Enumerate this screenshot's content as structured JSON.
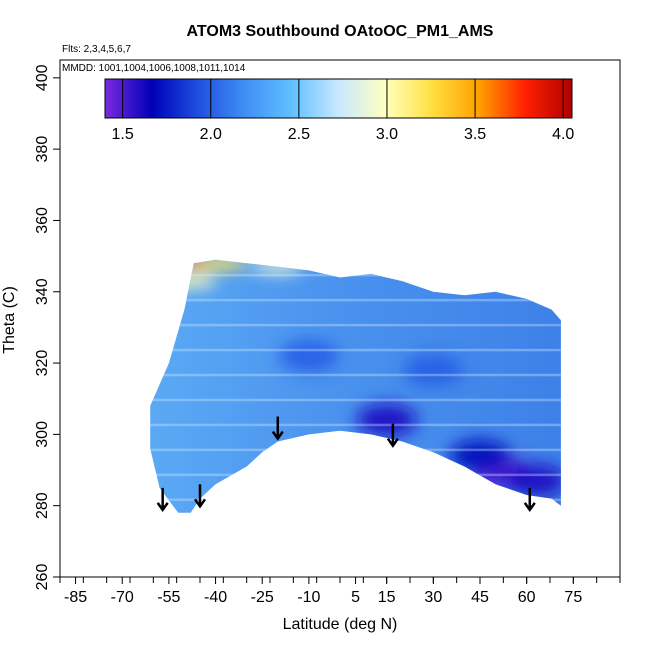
{
  "chart_data": {
    "type": "heatmap",
    "title": "ATOM3 Southbound OAtoOC_PM1_AMS",
    "subtitle_flights": "Flts: 2,3,4,5,6,7",
    "subtitle_dates": "MMDD: 1001,1004,1006,1008,1011,1014",
    "xlabel": "Latitude (deg N)",
    "ylabel": "Theta (C)",
    "xlim": [
      -90,
      90
    ],
    "ylim": [
      260,
      405
    ],
    "x_ticks": [
      -85,
      -70,
      -55,
      -40,
      -25,
      -10,
      5,
      15,
      30,
      45,
      60,
      75
    ],
    "x_tick_labels": [
      "-85",
      "-70",
      "-55",
      "-40",
      "-25",
      "-10",
      "5",
      "15",
      "30",
      "45",
      "60",
      "75"
    ],
    "y_ticks": [
      260,
      280,
      300,
      320,
      340,
      360,
      380,
      400
    ],
    "y_tick_labels": [
      "260",
      "280",
      "300",
      "320",
      "340",
      "360",
      "380",
      "400"
    ],
    "colorbar": {
      "min": 1.4,
      "max": 4.05,
      "ticks": [
        1.5,
        2.0,
        2.5,
        3.0,
        3.5,
        4.0
      ],
      "tick_labels": [
        "1.5",
        "2.0",
        "2.5",
        "3.0",
        "3.5",
        "4.0"
      ],
      "colors": [
        "#7a2be0",
        "#0000b8",
        "#1f4fe0",
        "#3f8ff5",
        "#60c0ff",
        "#c8e8ff",
        "#ffffc0",
        "#ffe040",
        "#ffa000",
        "#ff2000",
        "#b00000"
      ]
    },
    "region": {
      "top_theta": [
        [
          -61,
          308
        ],
        [
          -55,
          320
        ],
        [
          -50,
          335
        ],
        [
          -47,
          348
        ],
        [
          -40,
          349
        ],
        [
          -30,
          348
        ],
        [
          -20,
          347
        ],
        [
          -10,
          346
        ],
        [
          0,
          344
        ],
        [
          10,
          345
        ],
        [
          20,
          343
        ],
        [
          30,
          340
        ],
        [
          40,
          339
        ],
        [
          50,
          340
        ],
        [
          60,
          338
        ],
        [
          68,
          335
        ],
        [
          71,
          332
        ]
      ],
      "bottom_theta": [
        [
          71,
          280
        ],
        [
          68,
          282
        ],
        [
          60,
          283
        ],
        [
          50,
          286
        ],
        [
          40,
          291
        ],
        [
          30,
          295
        ],
        [
          20,
          298
        ],
        [
          10,
          300
        ],
        [
          0,
          301
        ],
        [
          -10,
          300
        ],
        [
          -20,
          298
        ],
        [
          -25,
          295
        ],
        [
          -30,
          291
        ],
        [
          -40,
          286
        ],
        [
          -45,
          282
        ],
        [
          -48,
          278
        ],
        [
          -52,
          278
        ],
        [
          -58,
          285
        ],
        [
          -61,
          296
        ]
      ]
    },
    "high_values": [
      {
        "lat": -45,
        "theta": 348,
        "value": 3.6
      },
      {
        "lat": -38,
        "theta": 348,
        "value": 3.2
      },
      {
        "lat": -20,
        "theta": 347,
        "value": 2.9
      },
      {
        "lat": -48,
        "theta": 343,
        "value": 3.0
      }
    ],
    "low_values": [
      {
        "lat": 53,
        "theta": 289,
        "value": 1.5
      },
      {
        "lat": 63,
        "theta": 287,
        "value": 1.6
      },
      {
        "lat": 45,
        "theta": 294,
        "value": 1.7
      },
      {
        "lat": 15,
        "theta": 304,
        "value": 1.6
      },
      {
        "lat": -10,
        "theta": 322,
        "value": 2.0
      },
      {
        "lat": 30,
        "theta": 318,
        "value": 2.0
      }
    ],
    "arrows_lat": [
      -57,
      -45,
      -20,
      17,
      61
    ],
    "arrows_theta": [
      285,
      286,
      305,
      303,
      285
    ]
  }
}
